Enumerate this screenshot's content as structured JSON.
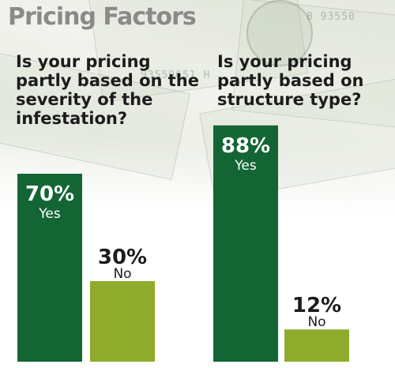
{
  "title": "Pricing Factors",
  "colors": {
    "yes_bar": "#136634",
    "no_bar": "#8eab2c",
    "title": "#8a8a88",
    "text": "#1c1c1c"
  },
  "background": {
    "serials": [
      "B 93550",
      "93550651 H"
    ]
  },
  "chart_data": [
    {
      "type": "bar",
      "title": "Is your pricing partly based on the severity of the infestation?",
      "categories": [
        "Yes",
        "No"
      ],
      "values": [
        70,
        30
      ],
      "value_labels": [
        "70%",
        "30%"
      ],
      "unit": "%",
      "ylim": [
        0,
        100
      ],
      "grid": false,
      "legend": "none"
    },
    {
      "type": "bar",
      "title": "Is your pricing partly based on structure type?",
      "categories": [
        "Yes",
        "No"
      ],
      "values": [
        88,
        12
      ],
      "value_labels": [
        "88%",
        "12%"
      ],
      "unit": "%",
      "ylim": [
        0,
        100
      ],
      "grid": false,
      "legend": "none"
    }
  ]
}
